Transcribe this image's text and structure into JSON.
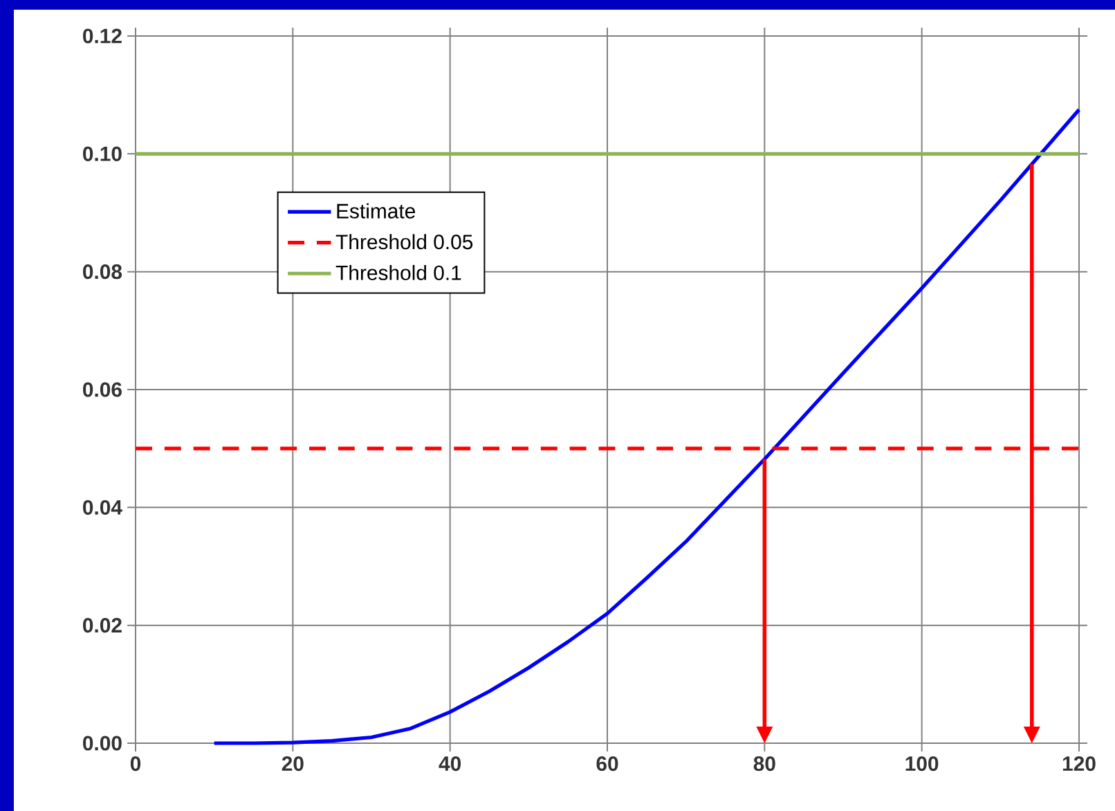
{
  "chart_data": {
    "type": "line",
    "xlim": [
      0,
      120
    ],
    "ylim": [
      0,
      0.12
    ],
    "xticks": [
      0,
      20,
      40,
      60,
      80,
      100,
      120
    ],
    "yticks": [
      {
        "value": 0,
        "label": "0.00"
      },
      {
        "value": 0.02,
        "label": "0.02"
      },
      {
        "value": 0.04,
        "label": "0.04"
      },
      {
        "value": 0.06,
        "label": "0.06"
      },
      {
        "value": 0.08,
        "label": "0.08"
      },
      {
        "value": 0.1,
        "label": "0.10"
      },
      {
        "value": 0.12,
        "label": "0.12"
      }
    ],
    "grid": true,
    "legend": "left",
    "series": [
      {
        "name": "Estimate",
        "color": "#0000ff",
        "x": [
          10,
          15,
          20,
          25,
          30,
          35,
          40,
          45,
          50,
          55,
          60,
          65,
          70,
          80,
          90,
          100,
          110,
          120
        ],
        "values": [
          0,
          0,
          0.0001,
          0.0004,
          0.001,
          0.0025,
          0.0053,
          0.0088,
          0.0128,
          0.0172,
          0.022,
          0.028,
          0.0342,
          0.0482,
          0.0628,
          0.0772,
          0.0921,
          0.1075
        ]
      },
      {
        "name": "Threshold 0.05",
        "color": "#ff0000",
        "line_style": "dashed",
        "x": [
          0,
          120
        ],
        "values": [
          0.05,
          0.05
        ]
      },
      {
        "name": "Threshold 0.1",
        "color": "#8db652",
        "x": [
          0,
          120
        ],
        "values": [
          0.1,
          0.1
        ]
      }
    ],
    "ref_lines": [
      {
        "axis": "x",
        "value": 80,
        "color": "#ff0000"
      },
      {
        "axis": "x",
        "value": 114,
        "color": "#ff0000"
      }
    ]
  }
}
